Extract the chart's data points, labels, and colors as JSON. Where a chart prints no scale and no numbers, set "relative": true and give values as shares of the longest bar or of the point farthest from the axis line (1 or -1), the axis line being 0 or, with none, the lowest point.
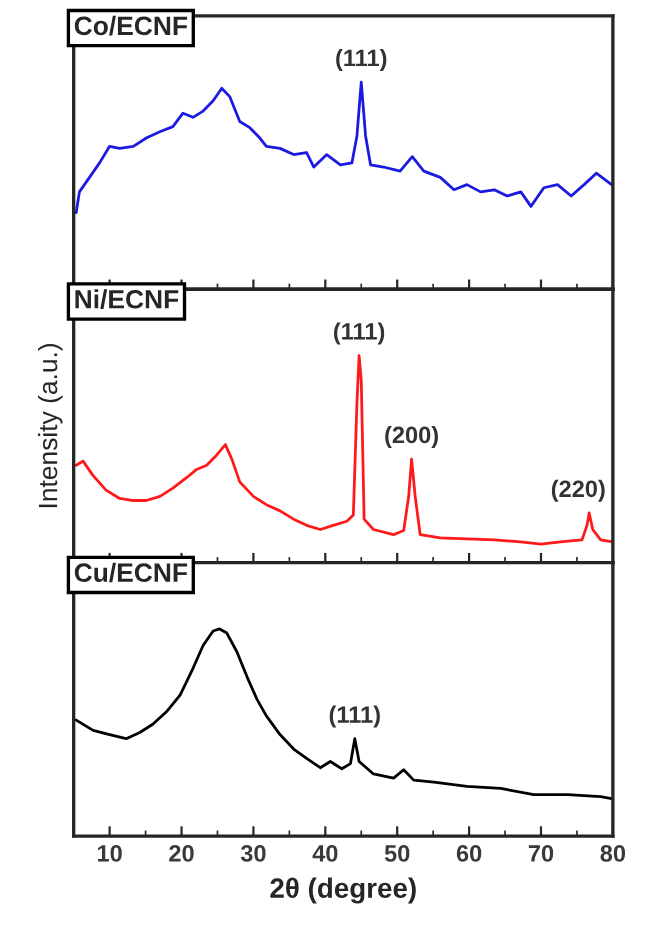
{
  "chart_data": [
    {
      "type": "line",
      "title": "Co/ECNF",
      "relative": true,
      "xlim": [
        5,
        80
      ],
      "xticks": [
        10,
        20,
        30,
        40,
        50,
        60,
        70,
        80
      ],
      "tick_labels": false,
      "annotations": [
        {
          "text": "(111)",
          "x": 45.0,
          "y": 1.0
        }
      ],
      "series": [
        {
          "color": "#1a1ae0",
          "x": [
            5.35,
            5.8,
            7.2,
            8.6,
            10,
            11.4,
            13.3,
            15.1,
            16.97,
            18.8,
            20.2,
            21.6,
            23.0,
            24.4,
            25.6,
            26.7,
            28.1,
            29.5,
            30.9,
            31.8,
            33.7,
            35.6,
            37.4,
            38.4,
            40.2,
            42.1,
            43.7,
            44.4,
            45.0,
            45.6,
            46.3,
            48.1,
            50.4,
            52.1,
            53.7,
            56.0,
            57.9,
            59.7,
            61.6,
            63.5,
            65.3,
            67.2,
            68.6,
            70.4,
            72.3,
            74.2,
            76.0,
            77.7,
            80
          ],
          "values": [
            0.37,
            0.47,
            0.54,
            0.61,
            0.69,
            0.68,
            0.69,
            0.73,
            0.76,
            0.785,
            0.85,
            0.83,
            0.86,
            0.91,
            0.97,
            0.93,
            0.81,
            0.78,
            0.73,
            0.69,
            0.68,
            0.65,
            0.66,
            0.59,
            0.65,
            0.6,
            0.61,
            0.74,
            1.0,
            0.74,
            0.6,
            0.59,
            0.57,
            0.64,
            0.57,
            0.54,
            0.48,
            0.505,
            0.47,
            0.48,
            0.45,
            0.47,
            0.4,
            0.49,
            0.505,
            0.45,
            0.505,
            0.56,
            0.5
          ]
        }
      ]
    },
    {
      "type": "line",
      "title": "Ni/ECNF",
      "ylabel": "Intensity (a.u.)",
      "relative": true,
      "xlim": [
        5,
        80
      ],
      "xticks": [
        10,
        20,
        30,
        40,
        50,
        60,
        70,
        80
      ],
      "tick_labels": false,
      "annotations": [
        {
          "text": "(111)",
          "x": 44.7,
          "y": 1.0
        },
        {
          "text": "(200)",
          "x": 52.0,
          "y": 0.5
        },
        {
          "text": "(220)",
          "x": 76.7,
          "y": 0.24
        }
      ],
      "series": [
        {
          "color": "#ff1a1a",
          "x": [
            5.35,
            6.3,
            7.7,
            9.5,
            11.4,
            13.3,
            15.1,
            17.0,
            18.8,
            20.7,
            22.1,
            23.5,
            24.9,
            26.1,
            27.0,
            28.1,
            30.0,
            31.8,
            33.7,
            35.6,
            37.4,
            39.3,
            41.1,
            43.0,
            43.9,
            44.4,
            44.7,
            45.0,
            45.4,
            46.7,
            49.5,
            50.9,
            51.6,
            52.0,
            52.5,
            53.2,
            56.0,
            59.7,
            63.5,
            67.2,
            70.0,
            72.7,
            75.7,
            76.4,
            76.7,
            77.2,
            78.3,
            80
          ],
          "values": [
            0.47,
            0.49,
            0.42,
            0.35,
            0.31,
            0.3,
            0.3,
            0.32,
            0.36,
            0.41,
            0.45,
            0.47,
            0.52,
            0.57,
            0.5,
            0.39,
            0.32,
            0.28,
            0.25,
            0.21,
            0.18,
            0.16,
            0.18,
            0.2,
            0.23,
            0.77,
            1.0,
            0.88,
            0.21,
            0.16,
            0.135,
            0.155,
            0.32,
            0.5,
            0.32,
            0.135,
            0.12,
            0.115,
            0.11,
            0.1,
            0.09,
            0.1,
            0.11,
            0.18,
            0.24,
            0.16,
            0.11,
            0.1
          ]
        }
      ]
    },
    {
      "type": "line",
      "title": "Cu/ECNF",
      "xlabel": "2θ (degree)",
      "relative": true,
      "xlim": [
        5,
        80
      ],
      "xticks": [
        10,
        20,
        30,
        40,
        50,
        60,
        70,
        80
      ],
      "tick_labels": "x",
      "annotations": [
        {
          "text": "(111)",
          "x": 44.1,
          "y": 0.47
        }
      ],
      "series": [
        {
          "color": "#000000",
          "x": [
            5.35,
            7.7,
            10,
            12.3,
            14.2,
            16.0,
            17.9,
            19.8,
            21.6,
            23.0,
            24.4,
            25.3,
            26.3,
            27.7,
            29.1,
            30.5,
            31.8,
            33.7,
            35.6,
            37.4,
            39.3,
            40.7,
            42.3,
            43.5,
            44.1,
            44.7,
            46.7,
            49.5,
            50.9,
            52.3,
            55.1,
            59.7,
            64.4,
            69.0,
            73.7,
            78.3,
            80
          ],
          "values": [
            0.56,
            0.51,
            0.49,
            0.47,
            0.5,
            0.54,
            0.6,
            0.68,
            0.81,
            0.92,
            0.99,
            1.0,
            0.98,
            0.89,
            0.77,
            0.66,
            0.58,
            0.49,
            0.42,
            0.375,
            0.33,
            0.36,
            0.325,
            0.35,
            0.47,
            0.36,
            0.3,
            0.28,
            0.32,
            0.27,
            0.26,
            0.24,
            0.23,
            0.2,
            0.2,
            0.19,
            0.18
          ]
        }
      ]
    }
  ]
}
